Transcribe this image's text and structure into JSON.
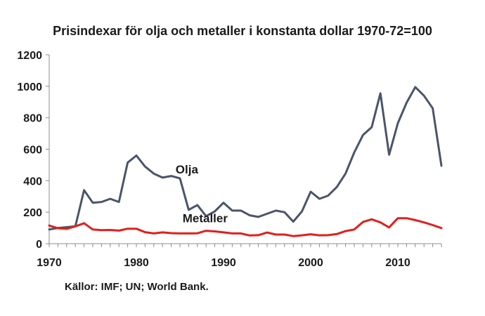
{
  "chart_data": {
    "type": "line",
    "title": "Prisindexar för olja och metaller i konstanta dollar 1970-72=100",
    "source": "Källor: IMF; UN; World Bank.",
    "xlabel": "",
    "ylabel": "",
    "xlim": [
      1970,
      2015
    ],
    "ylim": [
      0,
      1200
    ],
    "x_ticks": [
      1970,
      1980,
      1990,
      2000,
      2010
    ],
    "y_ticks": [
      0,
      200,
      400,
      600,
      800,
      1000,
      1200
    ],
    "grid": false,
    "x": [
      1970,
      1971,
      1972,
      1973,
      1974,
      1975,
      1976,
      1977,
      1978,
      1979,
      1980,
      1981,
      1982,
      1983,
      1984,
      1985,
      1986,
      1987,
      1988,
      1989,
      1990,
      1991,
      1992,
      1993,
      1994,
      1995,
      1996,
      1997,
      1998,
      1999,
      2000,
      2001,
      2002,
      2003,
      2004,
      2005,
      2006,
      2007,
      2008,
      2009,
      2010,
      2011,
      2012,
      2013,
      2014,
      2015
    ],
    "series": [
      {
        "name": "Olja",
        "color": "#4a5568",
        "values": [
          90,
          100,
          105,
          110,
          340,
          260,
          265,
          285,
          265,
          515,
          560,
          490,
          445,
          420,
          430,
          415,
          215,
          245,
          175,
          205,
          260,
          210,
          210,
          180,
          170,
          190,
          210,
          200,
          140,
          205,
          330,
          285,
          305,
          360,
          445,
          580,
          690,
          740,
          955,
          565,
          765,
          895,
          995,
          940,
          860,
          495
        ]
      },
      {
        "name": "Metaller",
        "color": "#e0201b",
        "values": [
          115,
          98,
          94,
          110,
          130,
          90,
          86,
          87,
          83,
          95,
          95,
          73,
          65,
          72,
          67,
          65,
          65,
          66,
          82,
          78,
          72,
          65,
          65,
          52,
          54,
          71,
          58,
          58,
          48,
          53,
          60,
          53,
          54,
          61,
          80,
          90,
          138,
          155,
          135,
          103,
          162,
          162,
          150,
          135,
          118,
          99
        ]
      }
    ]
  }
}
